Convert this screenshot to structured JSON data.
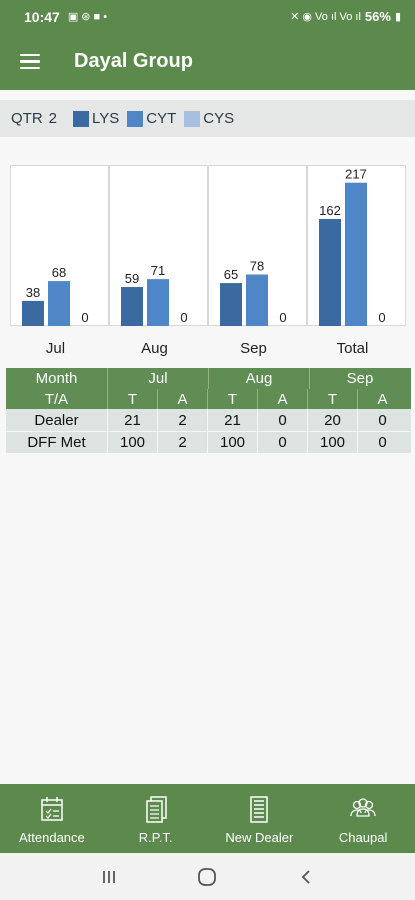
{
  "statusbar": {
    "time": "10:47",
    "battery": "56%",
    "left_icons": "▣ ⊛ ■ •",
    "right_icons": "✕ ◉ Vo ıl Vo ıl"
  },
  "appbar": {
    "title": "Dayal Group"
  },
  "legend": {
    "qtr_label": "QTR",
    "qtr_value": "2",
    "items": [
      {
        "label": "LYS",
        "color": "#3a6a9f"
      },
      {
        "label": "CYT",
        "color": "#4e86c8"
      },
      {
        "label": "CYS",
        "color": "#a8bfdf"
      }
    ]
  },
  "chart_data": {
    "type": "bar",
    "categories": [
      "Jul",
      "Aug",
      "Sep",
      "Total"
    ],
    "series": [
      {
        "name": "LYS",
        "values": [
          38,
          59,
          65,
          162
        ]
      },
      {
        "name": "CYT",
        "values": [
          68,
          71,
          78,
          217
        ]
      },
      {
        "name": "CYS",
        "values": [
          0,
          0,
          0,
          0
        ]
      }
    ],
    "colors": [
      "#3a6a9f",
      "#4e86c8",
      "#a8bfdf"
    ],
    "data_labels": true,
    "grid": false
  },
  "table": {
    "header": {
      "label": "Month",
      "months": [
        "Jul",
        "Aug",
        "Sep"
      ]
    },
    "subheader": {
      "label": "T/A",
      "cols": [
        "T",
        "A",
        "T",
        "A",
        "T",
        "A"
      ]
    },
    "rows": [
      {
        "label": "Dealer",
        "values": [
          "21",
          "2",
          "21",
          "0",
          "20",
          "0"
        ]
      },
      {
        "label": "DFF Met",
        "values": [
          "100",
          "2",
          "100",
          "0",
          "100",
          "0"
        ]
      }
    ]
  },
  "bottomnav": {
    "items": [
      {
        "label": "Attendance",
        "icon": "attendance-icon"
      },
      {
        "label": "R.P.T.",
        "icon": "report-icon"
      },
      {
        "label": "New Dealer",
        "icon": "building-icon"
      },
      {
        "label": "Chaupal",
        "icon": "group-icon"
      }
    ]
  }
}
